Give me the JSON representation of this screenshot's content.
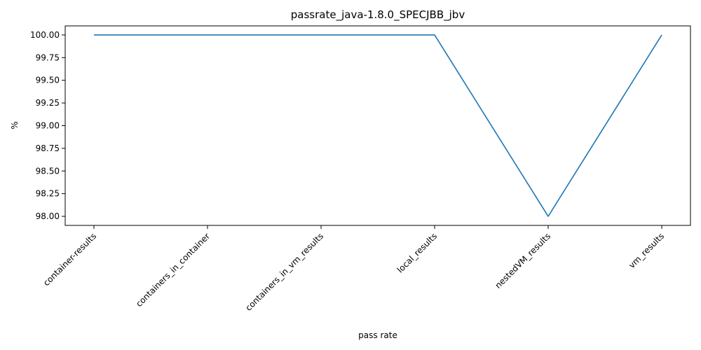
{
  "chart_data": {
    "type": "line",
    "title": "passrate_java-1.8.0_SPECJBB_jbv",
    "xlabel": "pass rate",
    "ylabel": "%",
    "categories": [
      "container-results",
      "containers_in_container",
      "containers_in_vm_results",
      "local_results",
      "nestedVM_results",
      "vm_results"
    ],
    "series": [
      {
        "values": [
          100.0,
          100.0,
          100.0,
          100.0,
          98.0,
          100.0
        ],
        "color": "#1f77b4"
      }
    ],
    "ylim": [
      97.9,
      100.1
    ],
    "yticks": [
      "98.00",
      "98.25",
      "98.50",
      "98.75",
      "99.00",
      "99.25",
      "99.50",
      "99.75",
      "100.00"
    ],
    "grid": false,
    "legend": "none"
  }
}
